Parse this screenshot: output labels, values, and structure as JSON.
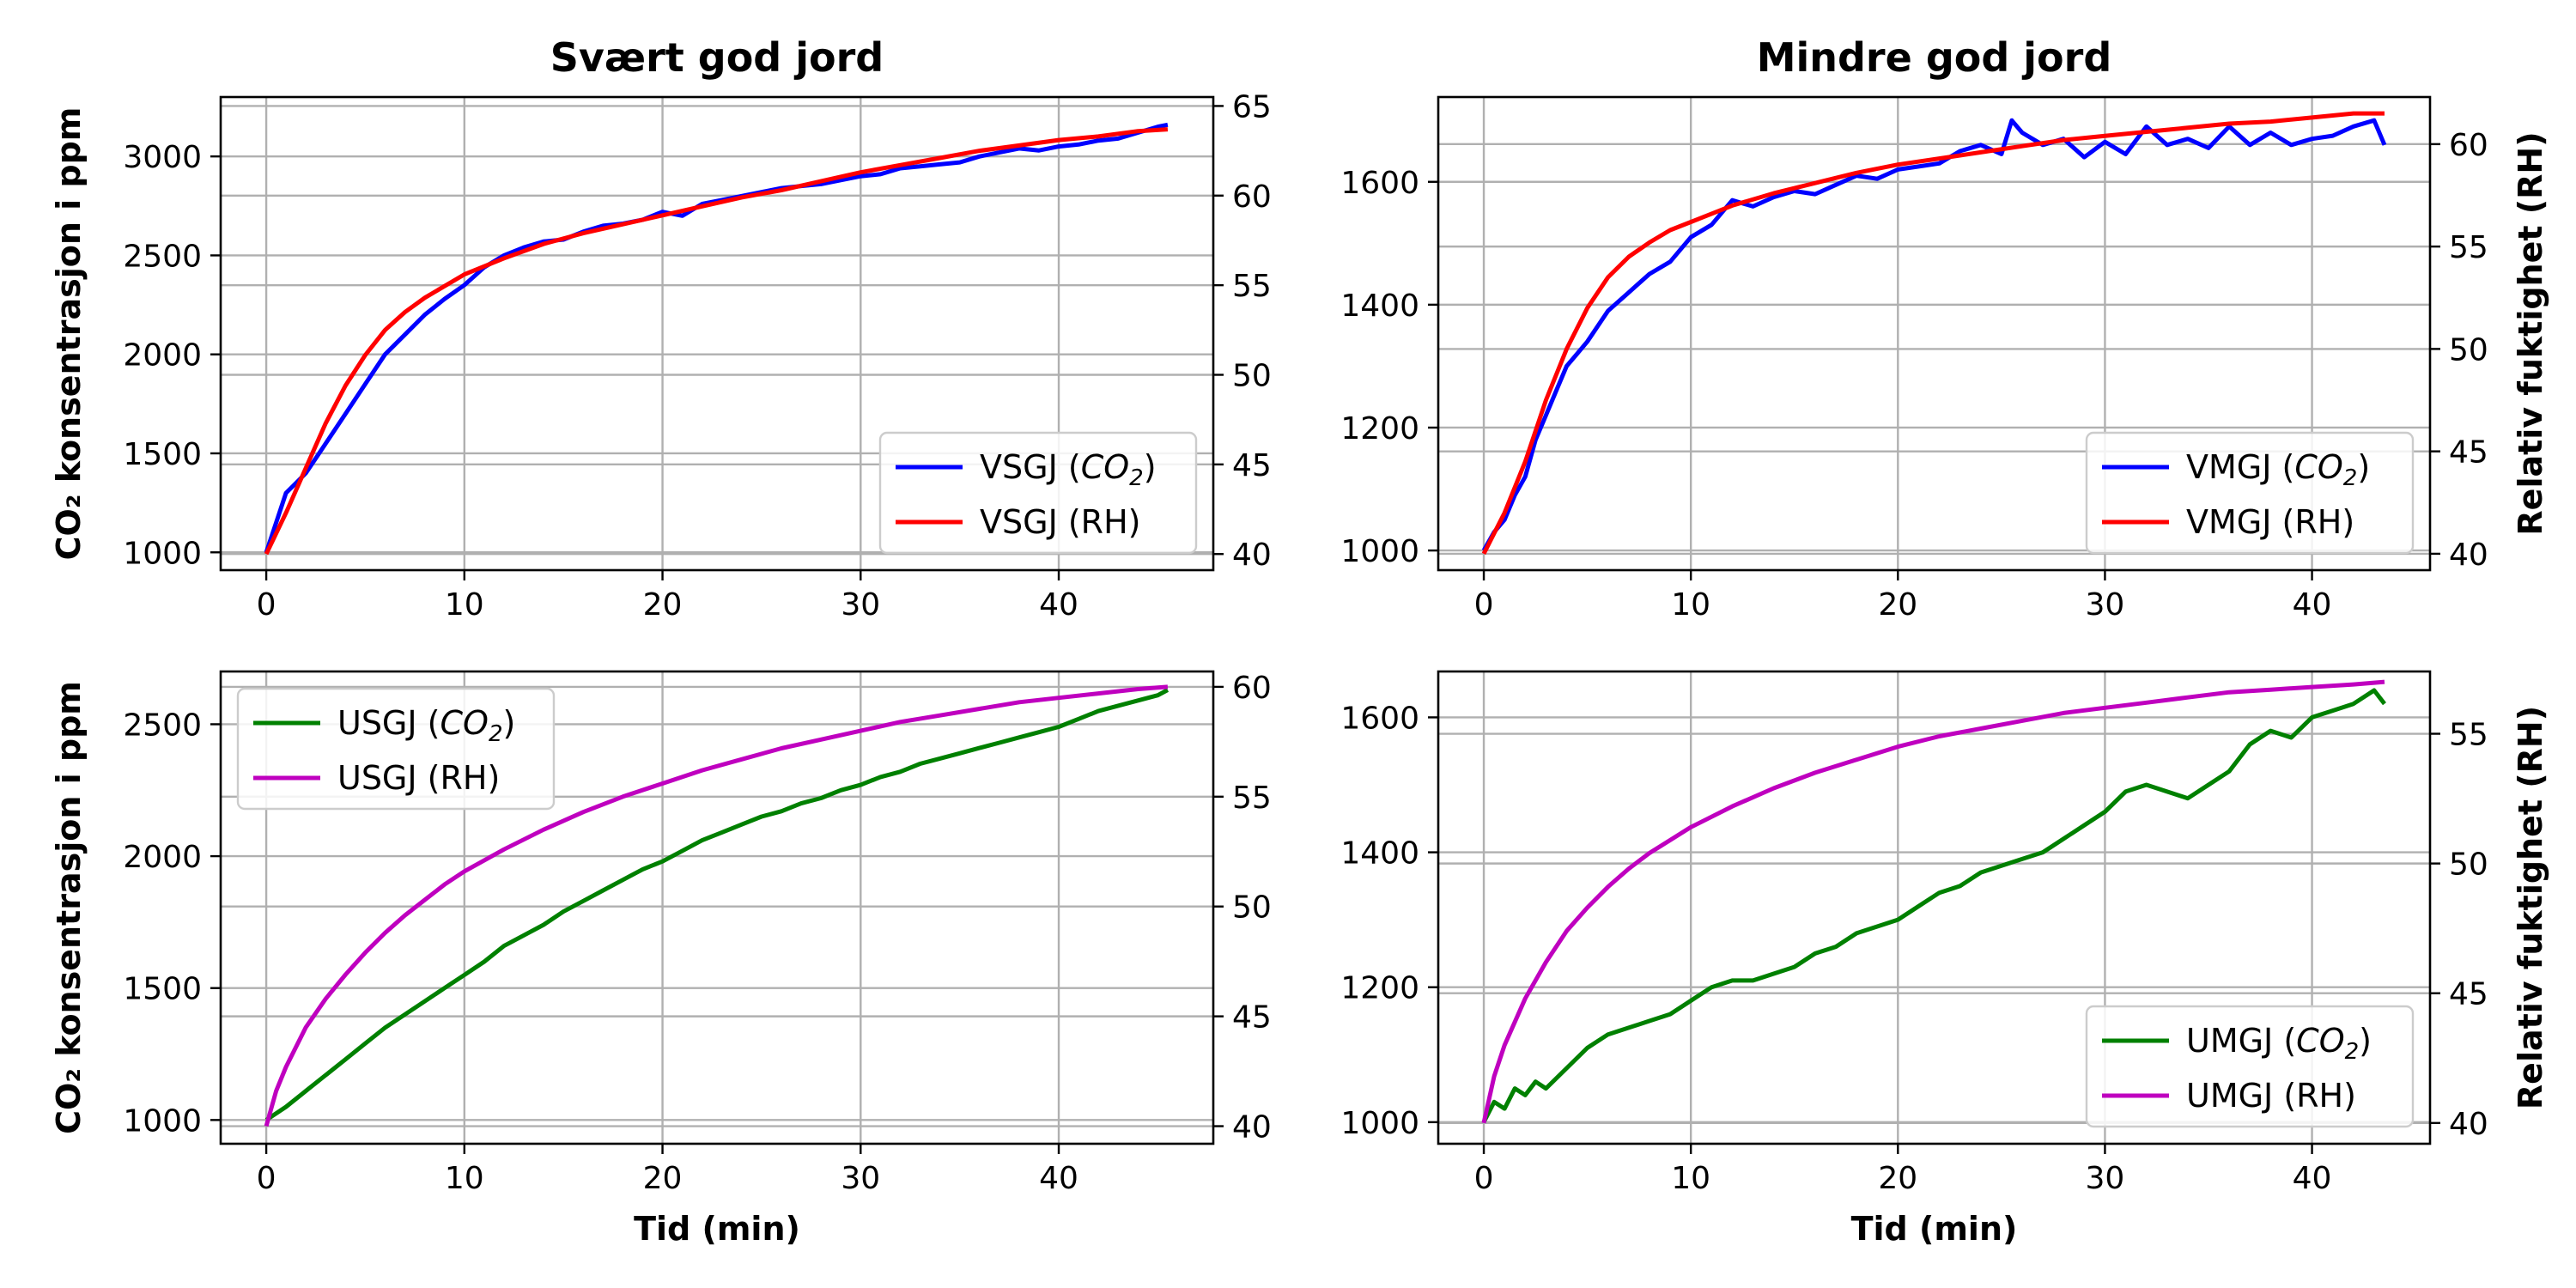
{
  "chart_data": [
    {
      "type": "line",
      "title": "Svært god jord",
      "xlabel": "",
      "ylabel": "CO₂ konsentrasjon i ppm",
      "y2label": "",
      "xlim": [
        -2.3,
        47.8
      ],
      "ylim": [
        910,
        3300
      ],
      "y2lim": [
        39.1,
        65.5
      ],
      "xticks": [
        0,
        10,
        20,
        30,
        40
      ],
      "yticks": [
        1000,
        1500,
        2000,
        2500,
        3000
      ],
      "y2ticks": [
        40,
        45,
        50,
        55,
        60,
        65
      ],
      "grid": true,
      "legend_position": "lower-right",
      "series": [
        {
          "name": "VSGJ (CO2)",
          "legend": [
            "VSGJ (",
            "CO",
            "2",
            ")"
          ],
          "color": "#0000ff",
          "axis": "left",
          "x": [
            0,
            0.5,
            1,
            1.5,
            2,
            3,
            4,
            5,
            6,
            7,
            8,
            9,
            10,
            11,
            12,
            13,
            14,
            15,
            16,
            17,
            18,
            19,
            20,
            21,
            22,
            23,
            24,
            25,
            26,
            27,
            28,
            29,
            30,
            31,
            32,
            33,
            34,
            35,
            36,
            37,
            38,
            39,
            40,
            41,
            42,
            43,
            44,
            45,
            45.5
          ],
          "y": [
            1000,
            1150,
            1300,
            1350,
            1400,
            1550,
            1700,
            1850,
            2000,
            2100,
            2200,
            2280,
            2350,
            2440,
            2500,
            2540,
            2570,
            2580,
            2620,
            2650,
            2660,
            2680,
            2720,
            2700,
            2760,
            2780,
            2800,
            2820,
            2840,
            2850,
            2860,
            2880,
            2900,
            2910,
            2940,
            2950,
            2960,
            2970,
            3000,
            3020,
            3040,
            3030,
            3050,
            3060,
            3080,
            3090,
            3120,
            3150,
            3160
          ]
        },
        {
          "name": "VSGJ (RH)",
          "legend": [
            "VSGJ (RH)"
          ],
          "color": "#ff0000",
          "axis": "right",
          "x": [
            0,
            1,
            2,
            3,
            4,
            5,
            6,
            7,
            8,
            10,
            12,
            14,
            16,
            18,
            20,
            22,
            24,
            26,
            28,
            30,
            32,
            34,
            36,
            38,
            40,
            42,
            44,
            45.5
          ],
          "y": [
            40,
            42.3,
            44.8,
            47.3,
            49.4,
            51.1,
            52.5,
            53.5,
            54.3,
            55.6,
            56.5,
            57.3,
            57.9,
            58.4,
            58.9,
            59.4,
            59.9,
            60.3,
            60.8,
            61.3,
            61.7,
            62.1,
            62.5,
            62.8,
            63.1,
            63.3,
            63.6,
            63.7
          ]
        }
      ]
    },
    {
      "type": "line",
      "title": "Mindre god jord",
      "xlabel": "",
      "ylabel": "",
      "y2label": "Relativ fuktighet (RH)",
      "xlim": [
        -2.2,
        45.7
      ],
      "ylim": [
        968,
        1738
      ],
      "y2lim": [
        39.2,
        62.3
      ],
      "xticks": [
        0,
        10,
        20,
        30,
        40
      ],
      "yticks": [
        1000,
        1200,
        1400,
        1600
      ],
      "y2ticks": [
        40,
        45,
        50,
        55,
        60
      ],
      "grid": true,
      "legend_position": "lower-right",
      "series": [
        {
          "name": "VMGJ (CO2)",
          "legend": [
            "VMGJ (",
            "CO",
            "2",
            ")"
          ],
          "color": "#0000ff",
          "axis": "left",
          "x": [
            0,
            0.5,
            1,
            1.5,
            2,
            2.5,
            3,
            3.5,
            4,
            4.5,
            5,
            6,
            7,
            8,
            9,
            10,
            11,
            12,
            13,
            14,
            15,
            16,
            17,
            18,
            19,
            20,
            21,
            22,
            23,
            24,
            25,
            25.5,
            26,
            27,
            28,
            29,
            30,
            31,
            32,
            33,
            34,
            35,
            36,
            37,
            38,
            39,
            40,
            41,
            42,
            43,
            43.5
          ],
          "y": [
            1000,
            1030,
            1050,
            1090,
            1120,
            1180,
            1220,
            1260,
            1300,
            1320,
            1340,
            1390,
            1420,
            1450,
            1470,
            1510,
            1530,
            1570,
            1560,
            1575,
            1585,
            1580,
            1595,
            1610,
            1605,
            1620,
            1625,
            1630,
            1650,
            1660,
            1645,
            1700,
            1680,
            1660,
            1670,
            1640,
            1665,
            1645,
            1690,
            1660,
            1670,
            1655,
            1690,
            1660,
            1680,
            1660,
            1670,
            1675,
            1690,
            1700,
            1660
          ]
        },
        {
          "name": "VMGJ (RH)",
          "legend": [
            "VMGJ (RH)"
          ],
          "color": "#ff0000",
          "axis": "right",
          "x": [
            0,
            1,
            2,
            3,
            4,
            5,
            6,
            7,
            8,
            9,
            10,
            12,
            14,
            16,
            18,
            20,
            22,
            24,
            26,
            28,
            30,
            32,
            34,
            36,
            38,
            40,
            42,
            43.5
          ],
          "y": [
            40,
            42,
            44.5,
            47.5,
            50,
            52,
            53.5,
            54.5,
            55.2,
            55.8,
            56.2,
            57,
            57.6,
            58.1,
            58.6,
            59,
            59.3,
            59.6,
            59.9,
            60.2,
            60.4,
            60.6,
            60.8,
            61,
            61.1,
            61.3,
            61.5,
            61.5
          ]
        }
      ]
    },
    {
      "type": "line",
      "title": "",
      "xlabel": "Tid (min)",
      "ylabel": "CO₂ konsentrasjon i ppm",
      "y2label": "",
      "xlim": [
        -2.3,
        47.8
      ],
      "ylim": [
        910,
        2700
      ],
      "y2lim": [
        39.2,
        60.7
      ],
      "xticks": [
        0,
        10,
        20,
        30,
        40
      ],
      "yticks": [
        1000,
        1500,
        2000,
        2500
      ],
      "y2ticks": [
        40,
        45,
        50,
        55,
        60
      ],
      "grid": true,
      "legend_position": "upper-left",
      "series": [
        {
          "name": "USGJ (CO2)",
          "legend": [
            "USGJ (",
            "CO",
            "2",
            ")"
          ],
          "color": "#008000",
          "axis": "left",
          "x": [
            0,
            1,
            2,
            3,
            4,
            5,
            6,
            7,
            8,
            9,
            10,
            11,
            12,
            13,
            14,
            15,
            16,
            17,
            18,
            19,
            20,
            21,
            22,
            23,
            24,
            25,
            26,
            27,
            28,
            29,
            30,
            31,
            32,
            33,
            34,
            35,
            36,
            37,
            38,
            39,
            40,
            41,
            42,
            43,
            44,
            45,
            45.5
          ],
          "y": [
            1000,
            1050,
            1110,
            1170,
            1230,
            1290,
            1350,
            1400,
            1450,
            1500,
            1550,
            1600,
            1660,
            1700,
            1740,
            1790,
            1830,
            1870,
            1910,
            1950,
            1980,
            2020,
            2060,
            2090,
            2120,
            2150,
            2170,
            2200,
            2220,
            2250,
            2270,
            2300,
            2320,
            2350,
            2370,
            2390,
            2410,
            2430,
            2450,
            2470,
            2490,
            2520,
            2550,
            2570,
            2590,
            2610,
            2630
          ]
        },
        {
          "name": "USGJ (RH)",
          "legend": [
            "USGJ (RH)"
          ],
          "color": "#bf00bf",
          "axis": "right",
          "x": [
            0,
            0.5,
            1,
            2,
            3,
            4,
            5,
            6,
            7,
            8,
            9,
            10,
            12,
            14,
            16,
            18,
            20,
            22,
            24,
            26,
            28,
            30,
            32,
            34,
            36,
            38,
            40,
            42,
            44,
            45.5
          ],
          "y": [
            40,
            41.6,
            42.7,
            44.5,
            45.8,
            46.9,
            47.9,
            48.8,
            49.6,
            50.3,
            51,
            51.6,
            52.6,
            53.5,
            54.3,
            55,
            55.6,
            56.2,
            56.7,
            57.2,
            57.6,
            58,
            58.4,
            58.7,
            59,
            59.3,
            59.5,
            59.7,
            59.9,
            60
          ]
        }
      ]
    },
    {
      "type": "line",
      "title": "",
      "xlabel": "Tid (min)",
      "ylabel": "",
      "y2label": "Relativ fuktighet (RH)",
      "xlim": [
        -2.2,
        45.7
      ],
      "ylim": [
        968,
        1668
      ],
      "y2lim": [
        39.2,
        57.4
      ],
      "xticks": [
        0,
        10,
        20,
        30,
        40
      ],
      "yticks": [
        1000,
        1200,
        1400,
        1600
      ],
      "y2ticks": [
        40,
        45,
        50,
        55
      ],
      "grid": true,
      "legend_position": "lower-right",
      "series": [
        {
          "name": "UMGJ (CO2)",
          "legend": [
            "UMGJ (",
            "CO",
            "2",
            ")"
          ],
          "color": "#008000",
          "axis": "left",
          "x": [
            0,
            0.5,
            1,
            1.5,
            2,
            2.5,
            3,
            4,
            5,
            6,
            7,
            8,
            9,
            10,
            11,
            12,
            13,
            14,
            15,
            16,
            17,
            18,
            19,
            20,
            21,
            22,
            23,
            24,
            25,
            26,
            27,
            28,
            29,
            30,
            31,
            32,
            33,
            34,
            35,
            36,
            37,
            38,
            39,
            40,
            41,
            42,
            43,
            43.5
          ],
          "y": [
            1000,
            1030,
            1020,
            1050,
            1040,
            1060,
            1050,
            1080,
            1110,
            1130,
            1140,
            1150,
            1160,
            1180,
            1200,
            1210,
            1210,
            1220,
            1230,
            1250,
            1260,
            1280,
            1290,
            1300,
            1320,
            1340,
            1350,
            1370,
            1380,
            1390,
            1400,
            1420,
            1440,
            1460,
            1490,
            1500,
            1490,
            1480,
            1500,
            1520,
            1560,
            1580,
            1570,
            1600,
            1610,
            1620,
            1640,
            1620
          ]
        },
        {
          "name": "UMGJ (RH)",
          "legend": [
            "UMGJ (RH)"
          ],
          "color": "#bf00bf",
          "axis": "right",
          "x": [
            0,
            0.5,
            1,
            2,
            3,
            4,
            5,
            6,
            7,
            8,
            9,
            10,
            12,
            14,
            16,
            18,
            20,
            22,
            24,
            26,
            28,
            30,
            32,
            34,
            36,
            38,
            40,
            42,
            43.5
          ],
          "y": [
            40,
            41.8,
            43,
            44.8,
            46.2,
            47.4,
            48.3,
            49.1,
            49.8,
            50.4,
            50.9,
            51.4,
            52.2,
            52.9,
            53.5,
            54,
            54.5,
            54.9,
            55.2,
            55.5,
            55.8,
            56,
            56.2,
            56.4,
            56.6,
            56.7,
            56.8,
            56.9,
            57
          ]
        }
      ]
    }
  ]
}
